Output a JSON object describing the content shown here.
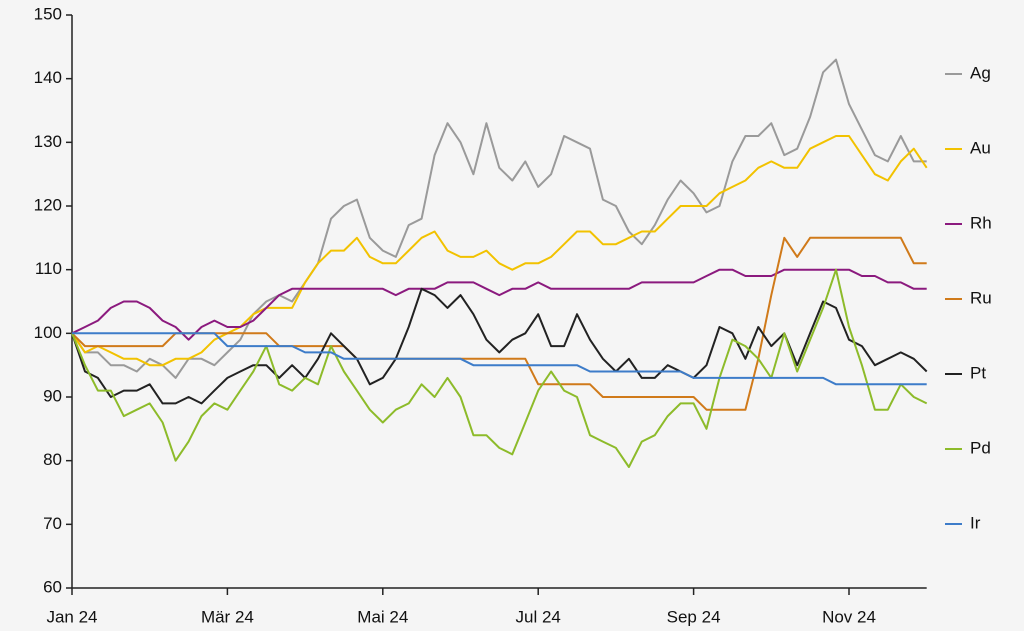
{
  "chart_data": {
    "type": "line",
    "categories": [
      "Jan 24",
      null,
      null,
      null,
      null,
      null,
      null,
      null,
      null,
      null,
      null,
      null,
      "Mär 24",
      null,
      null,
      null,
      null,
      null,
      null,
      null,
      null,
      null,
      null,
      null,
      "Mai 24",
      null,
      null,
      null,
      null,
      null,
      null,
      null,
      null,
      null,
      null,
      null,
      "Jul 24",
      null,
      null,
      null,
      null,
      null,
      null,
      null,
      null,
      null,
      null,
      null,
      "Sep 24",
      null,
      null,
      null,
      null,
      null,
      null,
      null,
      null,
      null,
      null,
      null,
      "Nov 24",
      null,
      null,
      null,
      null,
      null,
      null
    ],
    "ylim": [
      60,
      150
    ],
    "yticks": [
      60,
      70,
      80,
      90,
      100,
      110,
      120,
      130,
      140,
      150
    ],
    "grid": false,
    "series": [
      {
        "name": "Ag",
        "color": "#9a9a9a",
        "values": [
          100,
          97,
          97,
          95,
          95,
          94,
          96,
          95,
          93,
          96,
          96,
          95,
          97,
          99,
          103,
          105,
          106,
          105,
          108,
          111,
          118,
          120,
          121,
          115,
          113,
          112,
          117,
          118,
          128,
          133,
          130,
          125,
          133,
          126,
          124,
          127,
          123,
          125,
          131,
          130,
          129,
          121,
          120,
          116,
          114,
          117,
          121,
          124,
          122,
          119,
          120,
          127,
          131,
          131,
          133,
          128,
          129,
          134,
          141,
          143,
          136,
          132,
          128,
          127,
          131,
          127,
          127
        ]
      },
      {
        "name": "Au",
        "color": "#f2c200",
        "values": [
          100,
          97,
          98,
          97,
          96,
          96,
          95,
          95,
          96,
          96,
          97,
          99,
          100,
          101,
          103,
          104,
          104,
          104,
          108,
          111,
          113,
          113,
          115,
          112,
          111,
          111,
          113,
          115,
          116,
          113,
          112,
          112,
          113,
          111,
          110,
          111,
          111,
          112,
          114,
          116,
          116,
          114,
          114,
          115,
          116,
          116,
          118,
          120,
          120,
          120,
          122,
          123,
          124,
          126,
          127,
          126,
          126,
          129,
          130,
          131,
          131,
          128,
          125,
          124,
          127,
          129,
          126
        ]
      },
      {
        "name": "Rh",
        "color": "#8b1a7e",
        "values": [
          100,
          101,
          102,
          104,
          105,
          105,
          104,
          102,
          101,
          99,
          101,
          102,
          101,
          101,
          102,
          104,
          106,
          107,
          107,
          107,
          107,
          107,
          107,
          107,
          107,
          106,
          107,
          107,
          107,
          108,
          108,
          108,
          107,
          106,
          107,
          107,
          108,
          107,
          107,
          107,
          107,
          107,
          107,
          107,
          108,
          108,
          108,
          108,
          108,
          109,
          110,
          110,
          109,
          109,
          109,
          110,
          110,
          110,
          110,
          110,
          110,
          109,
          109,
          108,
          108,
          107,
          107
        ]
      },
      {
        "name": "Ru",
        "color": "#d07a1a",
        "values": [
          100,
          98,
          98,
          98,
          98,
          98,
          98,
          98,
          100,
          100,
          100,
          100,
          100,
          100,
          100,
          100,
          98,
          98,
          98,
          98,
          98,
          98,
          96,
          96,
          96,
          96,
          96,
          96,
          96,
          96,
          96,
          96,
          96,
          96,
          96,
          96,
          92,
          92,
          92,
          92,
          92,
          90,
          90,
          90,
          90,
          90,
          90,
          90,
          90,
          88,
          88,
          88,
          88,
          96,
          106,
          115,
          112,
          115,
          115,
          115,
          115,
          115,
          115,
          115,
          115,
          111,
          111
        ]
      },
      {
        "name": "Pt",
        "color": "#222222",
        "values": [
          100,
          94,
          93,
          90,
          91,
          91,
          92,
          89,
          89,
          90,
          89,
          91,
          93,
          94,
          95,
          95,
          93,
          95,
          93,
          96,
          100,
          98,
          96,
          92,
          93,
          96,
          101,
          107,
          106,
          104,
          106,
          103,
          99,
          97,
          99,
          100,
          103,
          98,
          98,
          103,
          99,
          96,
          94,
          96,
          93,
          93,
          95,
          94,
          93,
          95,
          101,
          100,
          96,
          101,
          98,
          100,
          95,
          100,
          105,
          104,
          99,
          98,
          95,
          96,
          97,
          96,
          94
        ]
      },
      {
        "name": "Pd",
        "color": "#8dbb2a",
        "values": [
          100,
          95,
          91,
          91,
          87,
          88,
          89,
          86,
          80,
          83,
          87,
          89,
          88,
          91,
          94,
          98,
          92,
          91,
          93,
          92,
          98,
          94,
          91,
          88,
          86,
          88,
          89,
          92,
          90,
          93,
          90,
          84,
          84,
          82,
          81,
          86,
          91,
          94,
          91,
          90,
          84,
          83,
          82,
          79,
          83,
          84,
          87,
          89,
          89,
          85,
          93,
          99,
          98,
          96,
          93,
          100,
          94,
          99,
          104,
          110,
          101,
          95,
          88,
          88,
          92,
          90,
          89
        ]
      },
      {
        "name": "Ir",
        "color": "#3d7cc9",
        "values": [
          100,
          100,
          100,
          100,
          100,
          100,
          100,
          100,
          100,
          100,
          100,
          100,
          98,
          98,
          98,
          98,
          98,
          98,
          97,
          97,
          97,
          96,
          96,
          96,
          96,
          96,
          96,
          96,
          96,
          96,
          96,
          95,
          95,
          95,
          95,
          95,
          95,
          95,
          95,
          95,
          94,
          94,
          94,
          94,
          94,
          94,
          94,
          94,
          93,
          93,
          93,
          93,
          93,
          93,
          93,
          93,
          93,
          93,
          93,
          92,
          92,
          92,
          92,
          92,
          92,
          92,
          92
        ]
      }
    ]
  }
}
